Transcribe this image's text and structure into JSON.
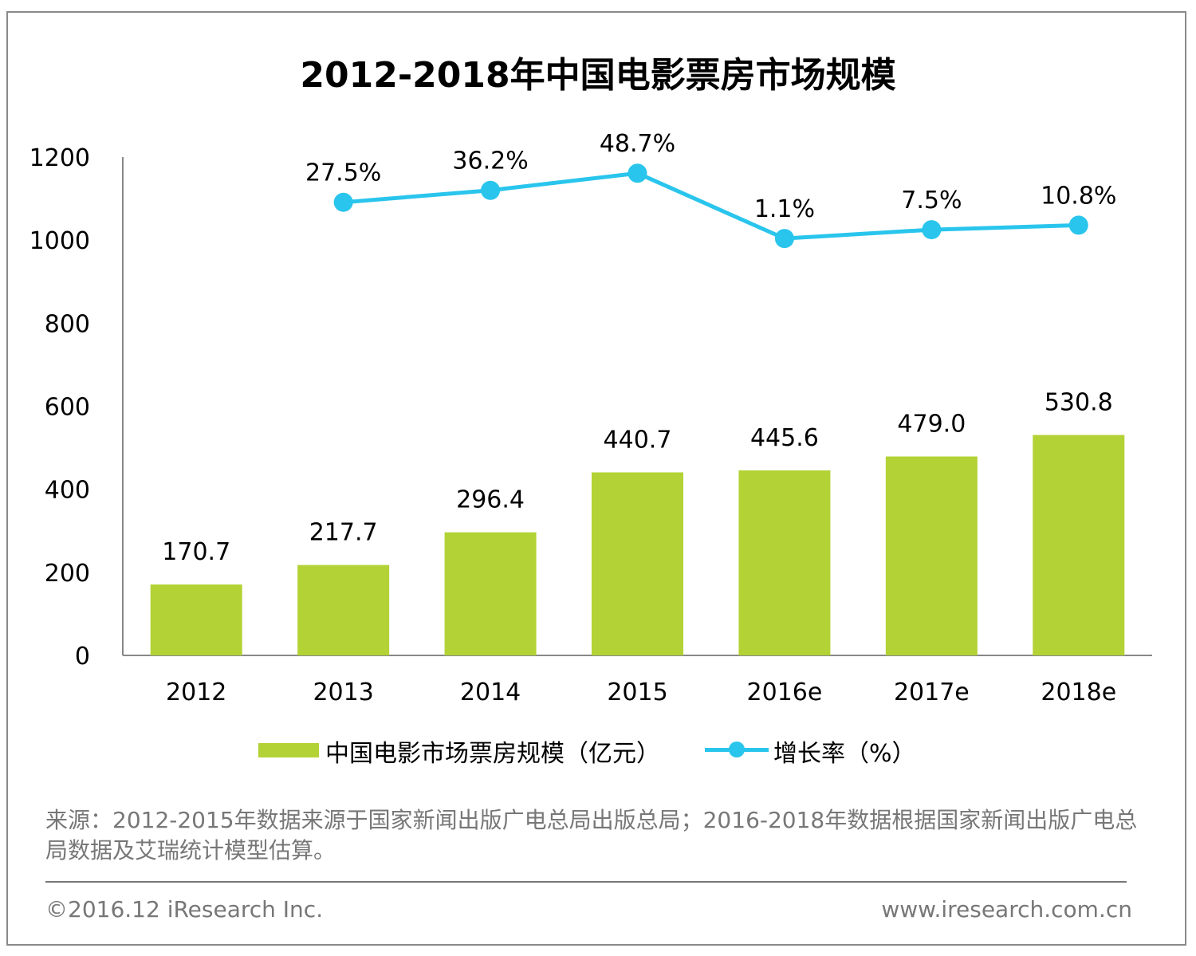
{
  "chart_data": {
    "type": "bar+line",
    "title": "2012-2018年中国电影票房市场规模",
    "categories": [
      "2012",
      "2013",
      "2014",
      "2015",
      "2016e",
      "2017e",
      "2018e"
    ],
    "series": [
      {
        "name": "中国电影市场票房规模（亿元）",
        "type": "bar",
        "color": "#b3d235",
        "values": [
          170.7,
          217.7,
          296.4,
          440.7,
          445.6,
          479.0,
          530.8
        ],
        "labels": [
          "170.7",
          "217.7",
          "296.4",
          "440.7",
          "445.6",
          "479.0",
          "530.8"
        ]
      },
      {
        "name": "增长率（%）",
        "type": "line",
        "color": "#29c5ec",
        "secondary_axis_hidden": true,
        "values": [
          null,
          27.5,
          36.2,
          48.7,
          1.1,
          7.5,
          10.8
        ],
        "labels": [
          "",
          "27.5%",
          "36.2%",
          "48.7%",
          "1.1%",
          "7.5%",
          "10.8%"
        ]
      }
    ],
    "ylim": [
      0,
      1200
    ],
    "yticks": [
      "0",
      "200",
      "400",
      "600",
      "800",
      "1000",
      "1200"
    ],
    "grid": false,
    "legend": "bottom"
  },
  "source": "来源：2012-2015年数据来源于国家新闻出版广电总局出版总局；2016-2018年数据根据国家新闻出版广电总局数据及艾瑞统计模型估算。",
  "footer": {
    "copyright": "©2016.12 iResearch Inc.",
    "site": "www.iresearch.com.cn"
  }
}
